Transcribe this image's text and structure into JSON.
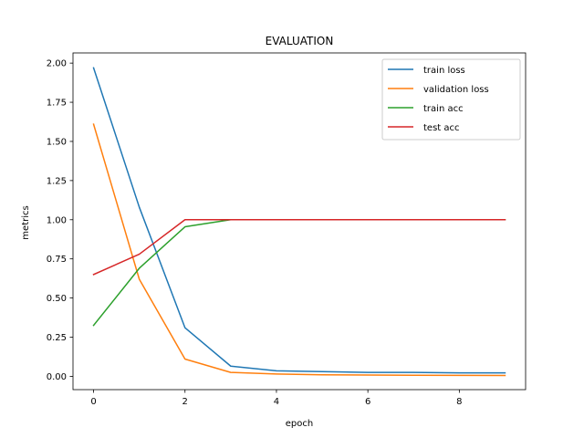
{
  "chart_data": {
    "type": "line",
    "title": "EVALUATION",
    "xlabel": "epoch",
    "ylabel": "metrics",
    "xlim": [
      -0.45,
      9.45
    ],
    "ylim": [
      -0.085,
      2.065
    ],
    "xticks": [
      0,
      2,
      4,
      6,
      8
    ],
    "xtick_labels": [
      "0",
      "2",
      "4",
      "6",
      "8"
    ],
    "yticks": [
      0,
      0.25,
      0.5,
      0.75,
      1.0,
      1.25,
      1.5,
      1.75,
      2.0
    ],
    "ytick_labels": [
      "0.00",
      "0.25",
      "0.50",
      "0.75",
      "1.00",
      "1.25",
      "1.50",
      "1.75",
      "2.00"
    ],
    "grid": false,
    "legend_position": "top-right",
    "x": [
      0,
      1,
      2,
      3,
      4,
      5,
      6,
      7,
      8,
      9
    ],
    "series": [
      {
        "name": "train loss",
        "color": "#1f77b4",
        "values": [
          1.97,
          1.08,
          0.31,
          0.065,
          0.035,
          0.03,
          0.025,
          0.025,
          0.022,
          0.022
        ]
      },
      {
        "name": "validation loss",
        "color": "#ff7f0e",
        "values": [
          1.61,
          0.62,
          0.11,
          0.025,
          0.015,
          0.01,
          0.008,
          0.007,
          0.006,
          0.005
        ]
      },
      {
        "name": "train acc",
        "color": "#2ca02c",
        "values": [
          0.325,
          0.69,
          0.955,
          1.0,
          1.0,
          1.0,
          1.0,
          1.0,
          1.0,
          1.0
        ]
      },
      {
        "name": "test acc",
        "color": "#d62728",
        "values": [
          0.65,
          0.78,
          1.0,
          1.0,
          1.0,
          1.0,
          1.0,
          1.0,
          1.0,
          1.0
        ]
      }
    ]
  }
}
